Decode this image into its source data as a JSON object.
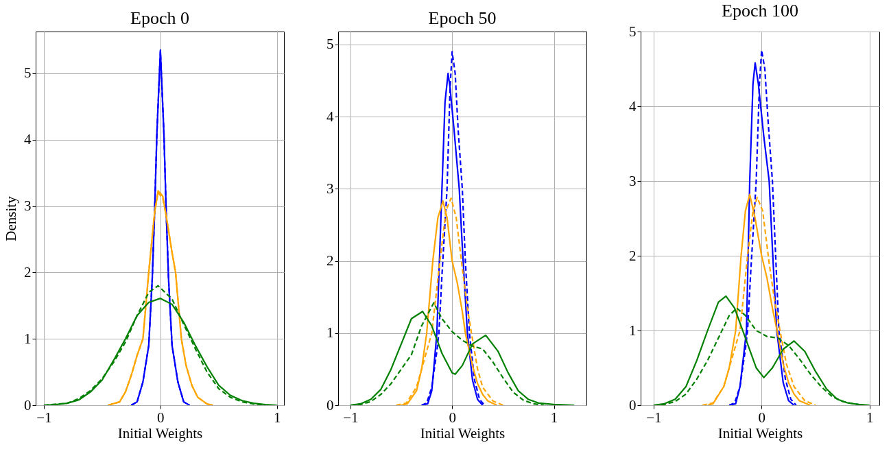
{
  "chart_data": [
    {
      "type": "line",
      "title": "Epoch 0",
      "xlabel": "Initial Weights",
      "ylabel": "Density",
      "xlim": [
        -1.07,
        1.06
      ],
      "ylim": [
        0,
        5.63
      ],
      "xticks": [
        {
          "value": -1,
          "label": "−1"
        },
        0,
        1
      ],
      "yticks": [
        0,
        1,
        2,
        3,
        4,
        5
      ],
      "grid": true,
      "series": [
        {
          "color": "#0000ff",
          "line_style": "solid",
          "x": [
            -0.25,
            -0.2,
            -0.15,
            -0.1,
            -0.07,
            -0.05,
            -0.03,
            0,
            0.03,
            0.05,
            0.07,
            0.1,
            0.15,
            0.2,
            0.25
          ],
          "values": [
            0,
            0.05,
            0.35,
            0.9,
            1.9,
            2.9,
            4.1,
            5.35,
            4.1,
            2.9,
            1.9,
            0.9,
            0.35,
            0.05,
            0
          ]
        },
        {
          "color": "#0000ff",
          "line_style": "dashed",
          "x": [
            -0.25,
            -0.2,
            -0.15,
            -0.1,
            -0.07,
            -0.05,
            -0.03,
            0,
            0.03,
            0.05,
            0.07,
            0.1,
            0.15,
            0.2,
            0.25
          ],
          "values": [
            0,
            0.05,
            0.35,
            0.9,
            1.9,
            2.9,
            4.1,
            5.33,
            4.1,
            2.9,
            1.9,
            0.9,
            0.35,
            0.05,
            0
          ]
        },
        {
          "color": "#ffa500",
          "line_style": "solid",
          "x": [
            -0.45,
            -0.35,
            -0.3,
            -0.25,
            -0.2,
            -0.15,
            -0.1,
            -0.05,
            -0.02,
            0.02,
            0.05,
            0.1,
            0.13,
            0.18,
            0.22,
            0.27,
            0.32,
            0.4,
            0.45
          ],
          "values": [
            0,
            0.05,
            0.2,
            0.45,
            0.75,
            1.0,
            2.0,
            2.9,
            3.23,
            3.15,
            2.85,
            2.3,
            2.0,
            1.0,
            0.6,
            0.3,
            0.12,
            0.02,
            0
          ]
        },
        {
          "color": "#ffa500",
          "line_style": "dashed",
          "x": [
            -0.45,
            -0.35,
            -0.3,
            -0.25,
            -0.2,
            -0.15,
            -0.1,
            -0.05,
            -0.02,
            0.02,
            0.05,
            0.1,
            0.13,
            0.18,
            0.22,
            0.27,
            0.32,
            0.4,
            0.45
          ],
          "values": [
            0,
            0.05,
            0.2,
            0.45,
            0.75,
            1.0,
            2.0,
            2.9,
            3.2,
            3.12,
            2.85,
            2.3,
            2.0,
            1.0,
            0.6,
            0.3,
            0.12,
            0.02,
            0
          ]
        },
        {
          "color": "#008000",
          "line_style": "solid",
          "x": [
            -1,
            -0.9,
            -0.8,
            -0.7,
            -0.6,
            -0.5,
            -0.4,
            -0.3,
            -0.2,
            -0.1,
            0,
            0.1,
            0.2,
            0.3,
            0.4,
            0.5,
            0.6,
            0.7,
            0.8,
            0.9,
            1.0
          ],
          "values": [
            0,
            0.01,
            0.03,
            0.08,
            0.2,
            0.38,
            0.68,
            1.0,
            1.35,
            1.55,
            1.61,
            1.52,
            1.25,
            0.9,
            0.58,
            0.3,
            0.15,
            0.07,
            0.03,
            0.01,
            0
          ]
        },
        {
          "color": "#008000",
          "line_style": "dashed",
          "x": [
            -1,
            -0.8,
            -0.7,
            -0.6,
            -0.5,
            -0.4,
            -0.3,
            -0.2,
            -0.1,
            -0.02,
            0.1,
            0.2,
            0.3,
            0.4,
            0.5,
            0.6,
            0.7,
            0.8,
            0.9
          ],
          "values": [
            0,
            0.03,
            0.1,
            0.22,
            0.4,
            0.65,
            0.95,
            1.35,
            1.7,
            1.8,
            1.6,
            1.22,
            0.85,
            0.5,
            0.25,
            0.12,
            0.05,
            0.02,
            0
          ]
        }
      ]
    },
    {
      "type": "line",
      "title": "Epoch 50",
      "xlabel": "Initial Weights",
      "xlim": [
        -1.12,
        1.32
      ],
      "ylim": [
        0,
        5.18
      ],
      "xticks": [
        {
          "value": -1,
          "label": "−1"
        },
        0,
        1
      ],
      "yticks": [
        0,
        1,
        2,
        3,
        4,
        5
      ],
      "grid": true,
      "series": [
        {
          "color": "#0000ff",
          "line_style": "solid",
          "x": [
            -0.3,
            -0.24,
            -0.2,
            -0.15,
            -0.1,
            -0.07,
            -0.04,
            -0.02,
            0.02,
            0.07,
            0.1,
            0.15,
            0.2,
            0.25,
            0.3
          ],
          "values": [
            0,
            0.02,
            0.2,
            1.0,
            3.0,
            4.2,
            4.6,
            4.4,
            3.8,
            3.0,
            2.2,
            1.0,
            0.35,
            0.08,
            0
          ]
        },
        {
          "color": "#0000ff",
          "line_style": "dashed",
          "x": [
            -0.3,
            -0.25,
            -0.2,
            -0.15,
            -0.13,
            -0.1,
            -0.05,
            -0.02,
            0,
            0.03,
            0.06,
            0.1,
            0.13,
            0.17,
            0.22,
            0.27,
            0.32
          ],
          "values": [
            0,
            0.03,
            0.25,
            0.75,
            1.0,
            1.8,
            3.0,
            4.4,
            4.9,
            4.6,
            3.8,
            3.0,
            2.0,
            1.0,
            0.35,
            0.08,
            0
          ]
        },
        {
          "color": "#ffa500",
          "line_style": "solid",
          "x": [
            -0.5,
            -0.44,
            -0.35,
            -0.3,
            -0.25,
            -0.19,
            -0.14,
            -0.09,
            -0.05,
            0,
            0.05,
            0.1,
            0.13,
            0.2,
            0.25,
            0.3,
            0.35,
            0.44
          ],
          "values": [
            0,
            0.02,
            0.2,
            0.5,
            1.0,
            2.0,
            2.6,
            2.83,
            2.6,
            2.0,
            1.7,
            1.3,
            1.0,
            0.55,
            0.3,
            0.15,
            0.06,
            0
          ]
        },
        {
          "color": "#ffa500",
          "line_style": "dashed",
          "x": [
            -0.55,
            -0.45,
            -0.35,
            -0.3,
            -0.2,
            -0.12,
            -0.06,
            -0.01,
            0.04,
            0.1,
            0.15,
            0.19,
            0.25,
            0.3,
            0.4,
            0.5
          ],
          "values": [
            0,
            0.03,
            0.25,
            0.5,
            1.0,
            2.0,
            2.7,
            2.87,
            2.6,
            1.9,
            1.35,
            1.0,
            0.5,
            0.25,
            0.06,
            0
          ]
        },
        {
          "color": "#008000",
          "line_style": "solid",
          "x": [
            -1,
            -0.9,
            -0.8,
            -0.7,
            -0.6,
            -0.5,
            -0.4,
            -0.29,
            -0.2,
            -0.1,
            0,
            0.03,
            0.1,
            0.2,
            0.33,
            0.45,
            0.55,
            0.65,
            0.75,
            0.85,
            1.0,
            1.2
          ],
          "values": [
            0,
            0.02,
            0.08,
            0.22,
            0.5,
            0.85,
            1.2,
            1.3,
            1.1,
            0.72,
            0.45,
            0.43,
            0.55,
            0.85,
            0.97,
            0.75,
            0.45,
            0.2,
            0.08,
            0.03,
            0.01,
            0
          ]
        },
        {
          "color": "#008000",
          "line_style": "dashed",
          "x": [
            -1,
            -0.9,
            -0.8,
            -0.7,
            -0.6,
            -0.5,
            -0.4,
            -0.3,
            -0.18,
            -0.1,
            0,
            0.1,
            0.2,
            0.3,
            0.4,
            0.5,
            0.6,
            0.7,
            0.8,
            0.9
          ],
          "values": [
            0,
            0.01,
            0.05,
            0.15,
            0.3,
            0.5,
            0.7,
            1.1,
            1.42,
            1.2,
            1.02,
            0.9,
            0.82,
            0.78,
            0.6,
            0.38,
            0.18,
            0.07,
            0.02,
            0
          ]
        }
      ]
    },
    {
      "type": "line",
      "title": "Epoch 100",
      "xlabel": "Initial Weights",
      "xlim": [
        -1.12,
        1.09
      ],
      "ylim": [
        0,
        5
      ],
      "xticks": [
        {
          "value": -1,
          "label": "−1"
        },
        0,
        1
      ],
      "yticks": [
        0,
        1,
        2,
        3,
        4,
        5
      ],
      "grid": true,
      "series": [
        {
          "color": "#0000ff",
          "line_style": "solid",
          "x": [
            -0.3,
            -0.24,
            -0.2,
            -0.14,
            -0.11,
            -0.08,
            -0.06,
            -0.03,
            0.02,
            0.07,
            0.1,
            0.14,
            0.2,
            0.25,
            0.3
          ],
          "values": [
            0,
            0.02,
            0.25,
            1.0,
            3.0,
            4.3,
            4.58,
            4.3,
            3.6,
            3.0,
            2.1,
            1.0,
            0.3,
            0.06,
            0
          ]
        },
        {
          "color": "#0000ff",
          "line_style": "dashed",
          "x": [
            -0.3,
            -0.25,
            -0.2,
            -0.15,
            -0.13,
            -0.1,
            -0.05,
            -0.02,
            0,
            0.03,
            0.06,
            0.1,
            0.13,
            0.16,
            0.22,
            0.27,
            0.32
          ],
          "values": [
            0,
            0.03,
            0.25,
            0.75,
            1.0,
            1.8,
            3.0,
            4.3,
            4.75,
            4.5,
            3.8,
            3.0,
            2.0,
            1.0,
            0.35,
            0.08,
            0
          ]
        },
        {
          "color": "#ffa500",
          "line_style": "solid",
          "x": [
            -0.5,
            -0.45,
            -0.35,
            -0.3,
            -0.24,
            -0.19,
            -0.15,
            -0.11,
            -0.06,
            0,
            0.05,
            0.1,
            0.15,
            0.2,
            0.25,
            0.3,
            0.35,
            0.45
          ],
          "values": [
            0,
            0.02,
            0.25,
            0.5,
            1.0,
            2.0,
            2.6,
            2.82,
            2.5,
            2.0,
            1.7,
            1.3,
            0.95,
            0.55,
            0.3,
            0.15,
            0.06,
            0
          ]
        },
        {
          "color": "#ffa500",
          "line_style": "dashed",
          "x": [
            -0.55,
            -0.45,
            -0.35,
            -0.3,
            -0.2,
            -0.13,
            -0.08,
            -0.04,
            0.01,
            0.07,
            0.12,
            0.17,
            0.23,
            0.3,
            0.4,
            0.5
          ],
          "values": [
            0,
            0.03,
            0.25,
            0.5,
            1.0,
            2.0,
            2.6,
            2.78,
            2.6,
            1.9,
            1.4,
            1.0,
            0.55,
            0.25,
            0.06,
            0
          ]
        },
        {
          "color": "#008000",
          "line_style": "solid",
          "x": [
            -1,
            -0.9,
            -0.8,
            -0.7,
            -0.6,
            -0.5,
            -0.4,
            -0.33,
            -0.25,
            -0.15,
            -0.05,
            0.02,
            0.1,
            0.2,
            0.3,
            0.4,
            0.5,
            0.6,
            0.7,
            0.8,
            0.9,
            1.0
          ],
          "values": [
            0,
            0.02,
            0.08,
            0.25,
            0.6,
            1.0,
            1.38,
            1.46,
            1.3,
            0.9,
            0.5,
            0.37,
            0.5,
            0.75,
            0.86,
            0.72,
            0.45,
            0.22,
            0.08,
            0.03,
            0.01,
            0
          ]
        },
        {
          "color": "#008000",
          "line_style": "dashed",
          "x": [
            -1,
            -0.9,
            -0.8,
            -0.7,
            -0.6,
            -0.5,
            -0.4,
            -0.3,
            -0.23,
            -0.15,
            -0.05,
            0.05,
            0.15,
            0.25,
            0.35,
            0.45,
            0.55,
            0.65,
            0.75,
            0.85,
            0.95
          ],
          "values": [
            0,
            0.01,
            0.05,
            0.15,
            0.35,
            0.6,
            0.9,
            1.2,
            1.3,
            1.2,
            1.0,
            0.92,
            0.9,
            0.8,
            0.62,
            0.42,
            0.25,
            0.12,
            0.05,
            0.02,
            0
          ]
        }
      ]
    }
  ]
}
